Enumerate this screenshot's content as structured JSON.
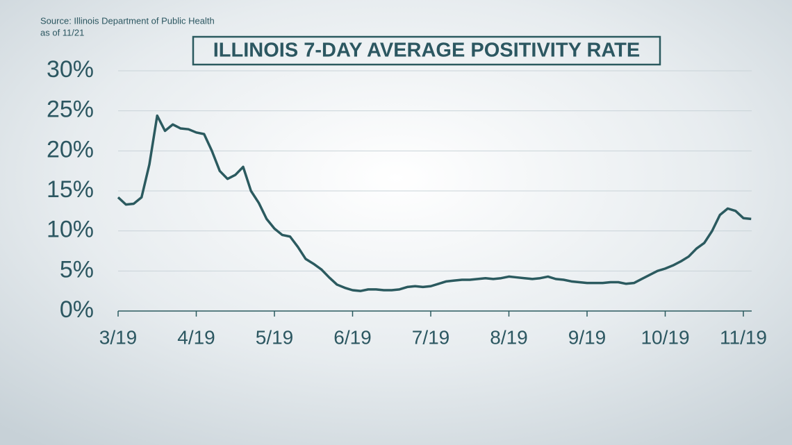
{
  "chart_data": {
    "type": "line",
    "title": "ILLINOIS 7-DAY AVERAGE POSITIVITY RATE",
    "source": "Source: Illinois Department of Public Health",
    "as_of": "as of 11/21",
    "categories": [
      "3/19",
      null,
      null,
      null,
      null,
      null,
      null,
      null,
      null,
      null,
      "4/19",
      null,
      null,
      null,
      null,
      null,
      null,
      null,
      null,
      null,
      "5/19",
      null,
      null,
      null,
      null,
      null,
      null,
      null,
      null,
      null,
      "6/19",
      null,
      null,
      null,
      null,
      null,
      null,
      null,
      null,
      null,
      "7/19",
      null,
      null,
      null,
      null,
      null,
      null,
      null,
      null,
      null,
      "8/19",
      null,
      null,
      null,
      null,
      null,
      null,
      null,
      null,
      null,
      "9/19",
      null,
      null,
      null,
      null,
      null,
      null,
      null,
      null,
      null,
      "10/19",
      null,
      null,
      null,
      null,
      null,
      null,
      null,
      null,
      null,
      "11/19",
      null
    ],
    "values": [
      14.2,
      13.3,
      13.4,
      14.2,
      18.3,
      24.4,
      22.5,
      23.3,
      22.8,
      22.7,
      22.3,
      22.1,
      20,
      17.5,
      16.5,
      17,
      18,
      15,
      13.5,
      11.5,
      10.3,
      9.5,
      9.3,
      8,
      6.5,
      5.9,
      5.2,
      4.2,
      3.3,
      2.9,
      2.6,
      2.5,
      2.7,
      2.7,
      2.6,
      2.6,
      2.7,
      3.0,
      3.1,
      3.0,
      3.1,
      3.4,
      3.7,
      3.8,
      3.9,
      3.9,
      4.0,
      4.1,
      4.0,
      4.1,
      4.3,
      4.2,
      4.1,
      4.0,
      4.1,
      4.3,
      4.0,
      3.9,
      3.7,
      3.6,
      3.5,
      3.5,
      3.5,
      3.6,
      3.6,
      3.4,
      3.5,
      4.0,
      4.5,
      5.0,
      5.3,
      5.7,
      6.2,
      6.8,
      7.8,
      8.5,
      10,
      12,
      12.8,
      12.5,
      11.6,
      11.5
    ],
    "color": "#2b5a5f",
    "ylim": [
      0,
      30
    ],
    "yticks": [
      {
        "value": 0,
        "label": "0%"
      },
      {
        "value": 5,
        "label": "5%"
      },
      {
        "value": 10,
        "label": "10%"
      },
      {
        "value": 15,
        "label": "15%"
      },
      {
        "value": 20,
        "label": "20%"
      },
      {
        "value": 25,
        "label": "25%"
      },
      {
        "value": 30,
        "label": "30%"
      }
    ],
    "grid": true
  }
}
